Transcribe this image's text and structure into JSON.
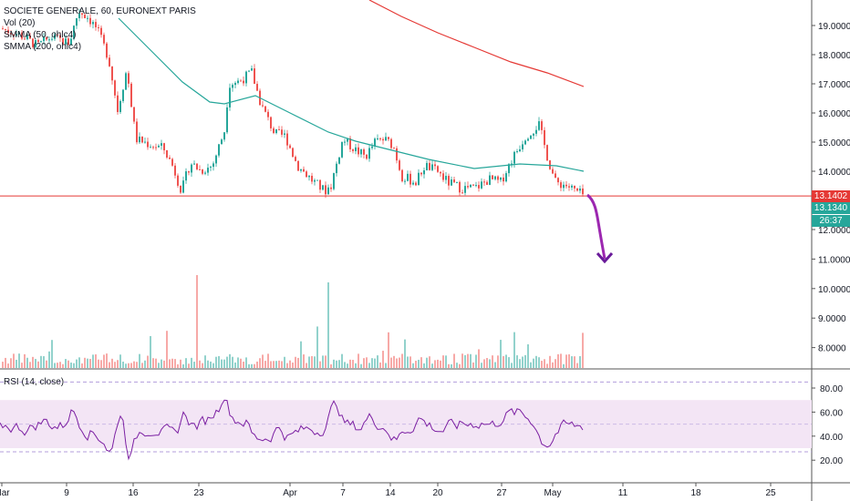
{
  "header": {
    "title": "SOCIETE GENERALE, 60, EURONEXT PARIS",
    "vol_label": "Vol (20)",
    "smma50_label": "SMMA (50, ohlc4)",
    "smma200_label": "SMMA (200, ohlc4)",
    "rsi_label": "RSI (14, close)"
  },
  "price_tags": {
    "current": "13.1402",
    "second": "13.1340",
    "countdown": "26:37"
  },
  "colors": {
    "up": "#26a69a",
    "down": "#ef5350",
    "smma50": "#26a69a",
    "smma200": "#e53935",
    "hline": "#e53935",
    "arrow": "#9c27b0",
    "rsi_line": "#7b1fa2",
    "rsi_band": "#f3e5f5"
  },
  "chart_data": [
    {
      "type": "candlestick",
      "title": "SOCIETE GENERALE, 60, EURONEXT PARIS",
      "ylim": [
        7.4,
        19.7
      ],
      "y_ticks": [
        "19.0000",
        "18.0000",
        "17.0000",
        "16.0000",
        "15.0000",
        "14.0000",
        "12.0000",
        "11.0000",
        "10.0000",
        "9.0000",
        "8.0000"
      ],
      "x_ticks": [
        "Mar",
        "9",
        "16",
        "23",
        "Apr",
        "7",
        "14",
        "20",
        "27",
        "May",
        "11",
        "18",
        "25"
      ],
      "horizontal_line": 13.14,
      "smma50": [
        [
          0.3,
          19.5
        ],
        [
          0.35,
          17.5
        ],
        [
          0.4,
          16.5
        ],
        [
          0.45,
          15.8
        ],
        [
          0.5,
          15.1
        ],
        [
          0.55,
          14.9
        ],
        [
          0.6,
          14.5
        ],
        [
          0.65,
          14.2
        ],
        [
          0.7,
          13.9
        ],
        [
          0.75,
          14.3
        ]
      ],
      "smma200": [
        [
          0.45,
          19.7
        ],
        [
          0.5,
          18.9
        ],
        [
          0.55,
          18.3
        ],
        [
          0.6,
          17.8
        ],
        [
          0.65,
          17.4
        ],
        [
          0.7,
          17.0
        ],
        [
          0.75,
          16.8
        ]
      ],
      "projection_arrow": {
        "from": 13.1,
        "to": 11.0
      },
      "volume_peaks": [
        "max spike near Apr 3",
        "large spike near Mar 23"
      ]
    },
    {
      "type": "line",
      "title": "RSI (14, close)",
      "ylim": [
        10,
        90
      ],
      "y_ticks": [
        "80.00",
        "60.00",
        "40.00",
        "20.00"
      ],
      "bands": [
        30,
        70
      ],
      "last_value": 38
    }
  ]
}
